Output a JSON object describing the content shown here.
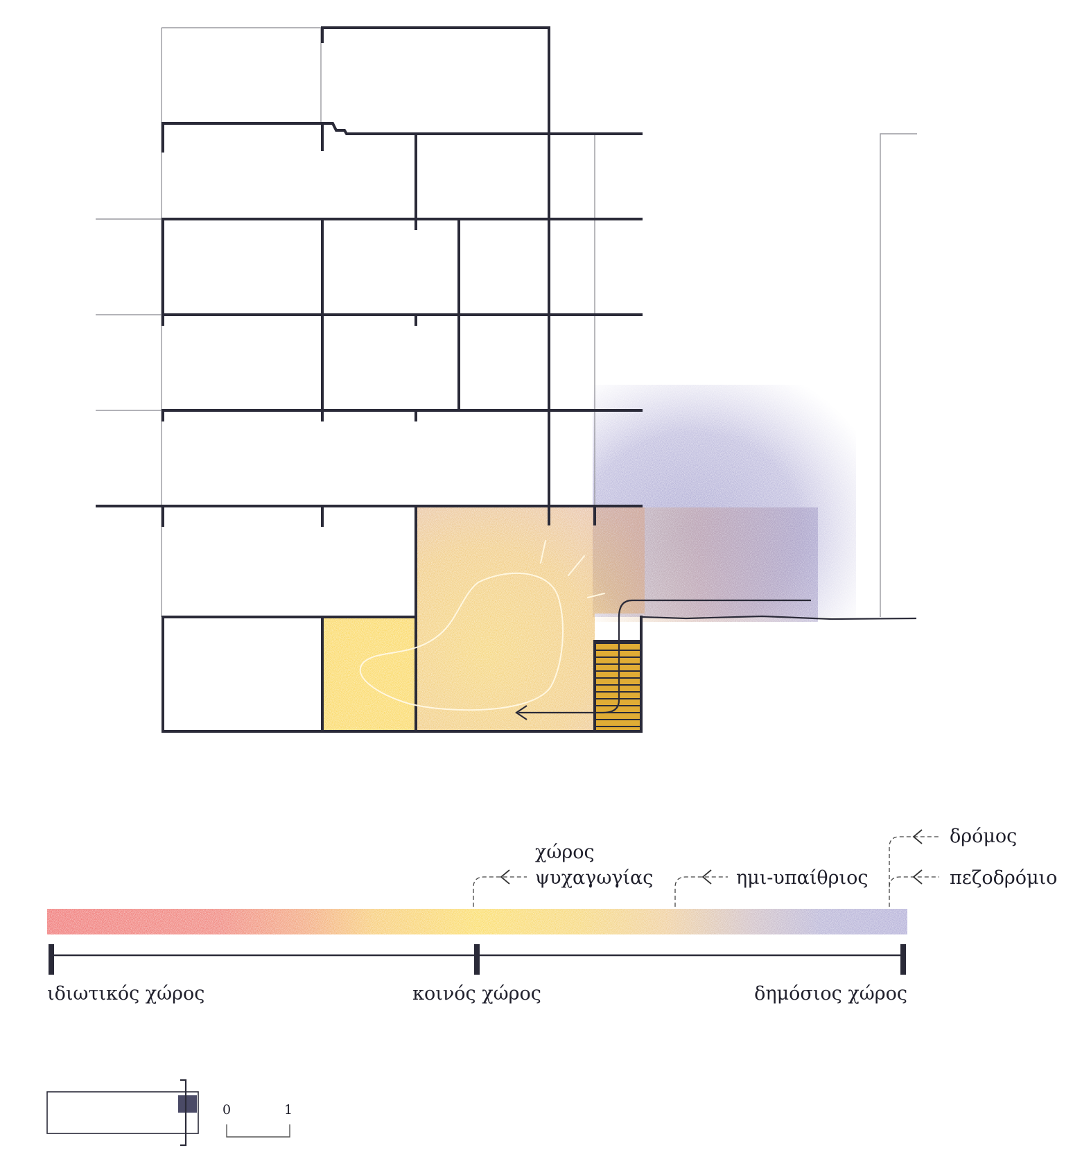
{
  "colors": {
    "wall": "#2a2a38",
    "thin_line": "#9a9aa0",
    "private": "#e8312f",
    "common": "#f8c81e",
    "recreation": "#e9b52c",
    "public": "#8f8ac0",
    "stair": "#d9a42a"
  },
  "gradient_labels": {
    "recreation_space": [
      "χώρος",
      "ψυχαγωγίας"
    ],
    "semi_open": "ημι-υπαίθριος",
    "road": "δρόμος",
    "sidewalk": "πεζοδρόμιο"
  },
  "scale_axis": {
    "private_space": "ιδιωτικός χώρος",
    "common_space": "κοινός χώρος",
    "public_space": "δημόσιος χώρος"
  },
  "scale_bar": {
    "start": "0",
    "end": "1"
  }
}
